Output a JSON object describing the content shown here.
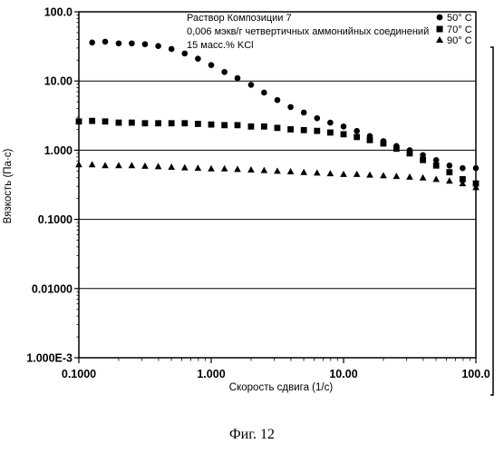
{
  "figure_caption": "Фиг. 12",
  "chart_data": {
    "type": "scatter",
    "xscale": "log",
    "yscale": "log",
    "xlim": [
      0.1,
      100
    ],
    "ylim": [
      0.001,
      100
    ],
    "xlabel": "Скорость сдвига (1/с)",
    "ylabel": "Вязкость (Па·с)",
    "x_tick_labels": [
      "0.1000",
      "1.000",
      "10.00",
      "100.0"
    ],
    "y_tick_labels": [
      "1.000E-3",
      "0.01000",
      "0.1000",
      "1.000",
      "10.00",
      "100.0"
    ],
    "annotation": [
      "Раствор Композиции 7",
      "0,006 мэкв/г четвертичных аммонийных соединений",
      "15 масс.% KCl"
    ],
    "grid": "horizontal",
    "legend_position": "top-right",
    "series": [
      {
        "name": "50° C",
        "marker": "circle",
        "x": [
          0.126,
          0.158,
          0.2,
          0.251,
          0.316,
          0.398,
          0.501,
          0.631,
          0.794,
          1.0,
          1.26,
          1.58,
          2.0,
          2.51,
          3.16,
          3.98,
          5.01,
          6.31,
          7.94,
          10.0,
          12.6,
          15.8,
          20.0,
          25.1,
          31.6,
          39.8,
          50.1,
          63.1,
          79.4,
          100.0
        ],
        "y": [
          36,
          37,
          35,
          35,
          34,
          32,
          29,
          25,
          21,
          17,
          13.5,
          11,
          8.8,
          6.8,
          5.3,
          4.2,
          3.5,
          2.9,
          2.5,
          2.2,
          1.9,
          1.6,
          1.35,
          1.15,
          1.0,
          0.85,
          0.72,
          0.6,
          0.55,
          0.55
        ]
      },
      {
        "name": "70° C",
        "marker": "square",
        "x": [
          0.1,
          0.126,
          0.158,
          0.2,
          0.251,
          0.316,
          0.398,
          0.501,
          0.631,
          0.794,
          1.0,
          1.26,
          1.58,
          2.0,
          2.51,
          3.16,
          3.98,
          5.01,
          6.31,
          7.94,
          10.0,
          12.6,
          15.8,
          20.0,
          25.1,
          31.6,
          39.8,
          50.1,
          63.1,
          79.4,
          100.0
        ],
        "y": [
          2.6,
          2.65,
          2.6,
          2.5,
          2.5,
          2.45,
          2.45,
          2.45,
          2.45,
          2.4,
          2.35,
          2.3,
          2.3,
          2.2,
          2.2,
          2.1,
          2.0,
          1.95,
          1.9,
          1.8,
          1.7,
          1.55,
          1.4,
          1.25,
          1.05,
          0.9,
          0.72,
          0.6,
          0.48,
          0.38,
          0.33
        ]
      },
      {
        "name": "90° C",
        "marker": "triangle",
        "x": [
          0.1,
          0.126,
          0.158,
          0.2,
          0.251,
          0.316,
          0.398,
          0.501,
          0.631,
          0.794,
          1.0,
          1.26,
          1.58,
          2.0,
          2.51,
          3.16,
          3.98,
          5.01,
          6.31,
          7.94,
          10.0,
          12.6,
          15.8,
          20.0,
          25.1,
          31.6,
          39.8,
          50.1,
          63.1,
          79.4,
          100.0
        ],
        "y": [
          0.62,
          0.62,
          0.6,
          0.6,
          0.6,
          0.59,
          0.58,
          0.57,
          0.56,
          0.55,
          0.54,
          0.54,
          0.53,
          0.52,
          0.51,
          0.5,
          0.49,
          0.48,
          0.47,
          0.46,
          0.45,
          0.45,
          0.44,
          0.43,
          0.42,
          0.41,
          0.4,
          0.38,
          0.36,
          0.33,
          0.29
        ]
      }
    ]
  }
}
